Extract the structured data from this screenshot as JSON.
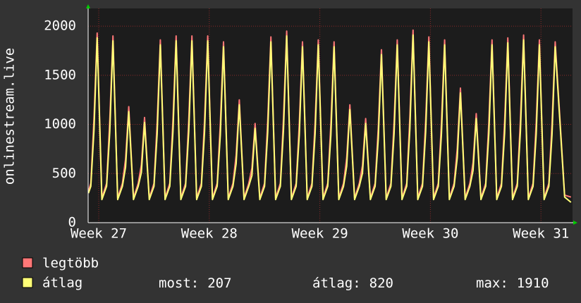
{
  "chart_data": {
    "type": "line",
    "y_label": "onlinestream.live",
    "x": [
      -0.65,
      -0.5,
      -0.3,
      -0.1,
      0.2,
      0.5,
      0.7,
      0.9,
      1.2,
      1.5,
      1.7,
      1.9,
      2.2,
      2.5,
      2.7,
      2.9,
      3.2,
      3.5,
      3.7,
      3.9,
      4.2,
      4.5,
      4.7,
      4.9,
      5.2,
      5.5,
      5.7,
      5.9,
      6.2,
      6.5,
      6.7,
      6.9,
      7.2,
      7.5,
      7.7,
      7.9,
      8.2,
      8.5,
      8.7,
      8.9,
      9.2,
      9.5,
      9.7,
      9.9,
      10.2,
      10.5,
      10.7,
      10.9,
      11.2,
      11.5,
      11.7,
      11.9,
      12.2,
      12.5,
      12.7,
      12.9,
      13.2,
      13.5,
      13.7,
      13.9,
      14.2,
      14.5,
      14.7,
      14.9,
      15.2,
      15.5,
      15.7,
      15.9,
      16.2,
      16.5,
      16.7,
      16.9,
      17.2,
      17.5,
      17.7,
      17.9,
      18.2,
      18.5,
      18.7,
      18.9,
      19.2,
      19.5,
      19.7,
      19.9,
      20.2,
      20.5,
      20.7,
      20.9,
      21.2,
      21.5,
      21.7,
      21.9,
      22.2,
      22.5,
      22.7,
      22.9,
      23.2,
      23.5,
      23.7,
      23.9,
      24.2,
      24.5,
      24.7,
      24.9,
      25.2,
      25.5,
      25.7,
      25.9,
      26.2,
      26.5,
      26.7,
      26.9,
      27.2,
      27.5,
      27.7,
      27.9,
      28.2,
      28.5,
      28.7,
      28.9,
      29.5,
      29.9
    ],
    "series": [
      {
        "name": "legtöbb",
        "color": "#ff7777",
        "values": [
          320,
          400,
          1062,
          1930,
          250,
          400,
          1045,
          1900,
          250,
          400,
          649,
          1180,
          250,
          400,
          589,
          1070,
          250,
          400,
          1023,
          1860,
          250,
          400,
          1045,
          1900,
          250,
          400,
          1045,
          1900,
          250,
          400,
          1045,
          1900,
          250,
          400,
          1012,
          1840,
          250,
          400,
          688,
          1250,
          250,
          400,
          556,
          1010,
          250,
          400,
          1040,
          1890,
          250,
          400,
          1073,
          1950,
          250,
          400,
          1012,
          1840,
          250,
          400,
          1023,
          1860,
          250,
          400,
          1012,
          1840,
          250,
          400,
          660,
          1200,
          250,
          400,
          583,
          1060,
          250,
          400,
          968,
          1760,
          250,
          400,
          1023,
          1860,
          250,
          400,
          1078,
          1960,
          250,
          400,
          1040,
          1890,
          250,
          400,
          1023,
          1860,
          250,
          400,
          754,
          1370,
          250,
          400,
          611,
          1110,
          250,
          400,
          1023,
          1860,
          250,
          400,
          1034,
          1880,
          250,
          400,
          1051,
          1910,
          250,
          400,
          1023,
          1860,
          250,
          400,
          1012,
          1840,
          280,
          260
        ]
      },
      {
        "name": "átlag",
        "color": "#ffff77",
        "values": [
          300,
          370,
          940,
          1880,
          235,
          370,
          925,
          1850,
          235,
          370,
          565,
          1130,
          235,
          370,
          510,
          1020,
          235,
          370,
          905,
          1810,
          235,
          370,
          925,
          1850,
          235,
          370,
          925,
          1850,
          235,
          370,
          925,
          1850,
          235,
          370,
          895,
          1790,
          235,
          370,
          600,
          1200,
          235,
          370,
          480,
          960,
          235,
          370,
          920,
          1840,
          235,
          370,
          950,
          1900,
          235,
          370,
          895,
          1790,
          235,
          370,
          905,
          1810,
          235,
          370,
          895,
          1790,
          235,
          370,
          575,
          1150,
          235,
          370,
          505,
          1010,
          235,
          370,
          855,
          1710,
          235,
          370,
          905,
          1810,
          235,
          370,
          955,
          1910,
          235,
          370,
          920,
          1840,
          235,
          370,
          905,
          1810,
          235,
          370,
          660,
          1320,
          235,
          370,
          530,
          1060,
          235,
          370,
          905,
          1810,
          235,
          370,
          915,
          1830,
          235,
          370,
          930,
          1860,
          235,
          370,
          905,
          1810,
          235,
          370,
          895,
          1790,
          260,
          207
        ]
      }
    ],
    "xlim": [
      -0.67,
      30
    ],
    "xticks": [
      {
        "value": 0,
        "label": "Week 27"
      },
      {
        "value": 7,
        "label": "Week 28"
      },
      {
        "value": 14,
        "label": "Week 29"
      },
      {
        "value": 21,
        "label": "Week 30"
      },
      {
        "value": 28,
        "label": "Week 31"
      }
    ],
    "ylim": [
      0,
      2180
    ],
    "yticks": [
      0,
      500,
      1000,
      1500,
      2000
    ],
    "grid": true,
    "stats": [
      {
        "label": "most:",
        "value": 207
      },
      {
        "label": "átlag:",
        "value": 820
      },
      {
        "label": "max:",
        "value": 1910
      }
    ]
  }
}
